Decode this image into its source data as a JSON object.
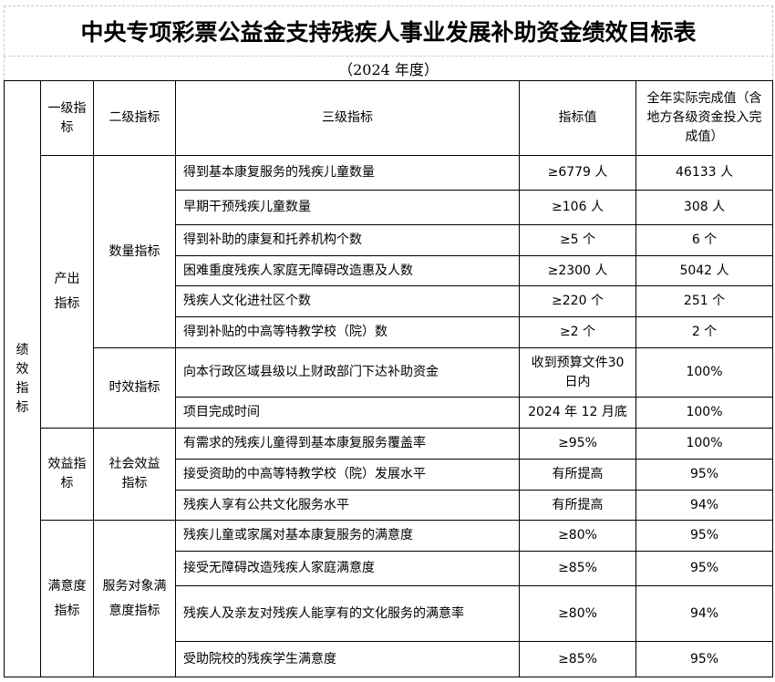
{
  "title": "中央专项彩票公益金支持残疾人事业发展补助资金绩效目标表",
  "subtitle": "（2024 年度）",
  "headers": {
    "level1": "一级指标",
    "level2": "二级指标",
    "level3": "三级指标",
    "target": "指标值",
    "actual": "全年实际完成值（含地方各级资金投入完成值）"
  },
  "category": "绩效指标",
  "groups": {
    "output": "产出指标",
    "benefit": "效益指标",
    "satisfaction": "满意度指标"
  },
  "subgroups": {
    "quantity": "数量指标",
    "timeliness": "时效指标",
    "social": "社会效益指标",
    "service": "服务对象满意度指标"
  },
  "rows": [
    {
      "indicator": "得到基本康复服务的残疾儿童数量",
      "target": "≥6779 人",
      "actual": "46133 人"
    },
    {
      "indicator": "早期干预残疾儿童数量",
      "target": "≥106 人",
      "actual": "308 人"
    },
    {
      "indicator": "得到补助的康复和托养机构个数",
      "target": "≥5 个",
      "actual": "6 个"
    },
    {
      "indicator": "困难重度残疾人家庭无障碍改造惠及人数",
      "target": "≥2300 人",
      "actual": "5042 人"
    },
    {
      "indicator": "残疾人文化进社区个数",
      "target": "≥220 个",
      "actual": "251 个"
    },
    {
      "indicator": "得到补贴的中高等特教学校（院）数",
      "target": "≥2 个",
      "actual": "2 个"
    },
    {
      "indicator": "向本行政区域县级以上财政部门下达补助资金",
      "target": "收到预算文件30 日内",
      "actual": "100%"
    },
    {
      "indicator": "项目完成时间",
      "target": "2024 年 12 月底",
      "actual": "100%"
    },
    {
      "indicator": "有需求的残疾儿童得到基本康复服务覆盖率",
      "target": "≥95%",
      "actual": "100%"
    },
    {
      "indicator": "接受资助的中高等特教学校（院）发展水平",
      "target": "有所提高",
      "actual": "95%"
    },
    {
      "indicator": "残疾人享有公共文化服务水平",
      "target": "有所提高",
      "actual": "94%"
    },
    {
      "indicator": "残疾儿童或家属对基本康复服务的满意度",
      "target": "≥80%",
      "actual": "95%"
    },
    {
      "indicator": "接受无障碍改造残疾人家庭满意度",
      "target": "≥85%",
      "actual": "95%"
    },
    {
      "indicator": "残疾人及亲友对残疾人能享有的文化服务的满意率",
      "target": "≥80%",
      "actual": "94%"
    },
    {
      "indicator": "受助院校的残疾学生满意度",
      "target": "≥85%",
      "actual": "95%"
    }
  ]
}
